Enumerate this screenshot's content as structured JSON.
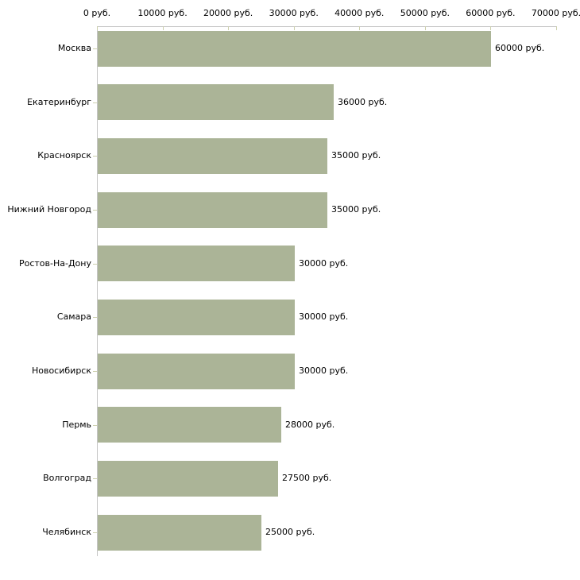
{
  "chart_data": {
    "type": "bar",
    "orientation": "horizontal",
    "title": "",
    "xlabel": "",
    "ylabel": "",
    "categories": [
      "Москва",
      "Екатеринбург",
      "Красноярск",
      "Нижний Новгород",
      "Ростов-На-Дону",
      "Самара",
      "Новосибирск",
      "Пермь",
      "Волгоград",
      "Челябинск"
    ],
    "values": [
      60000,
      36000,
      35000,
      35000,
      30000,
      30000,
      30000,
      28000,
      27500,
      25000
    ],
    "value_labels": [
      "60000 руб.",
      "36000 руб.",
      "35000 руб.",
      "35000 руб.",
      "30000 руб.",
      "30000 руб.",
      "30000 руб.",
      "28000 руб.",
      "27500 руб.",
      "25000 руб."
    ],
    "x_axis": {
      "position": "top",
      "tick_values": [
        0,
        10000,
        20000,
        30000,
        40000,
        50000,
        60000,
        70000
      ],
      "tick_labels": [
        "0 руб.",
        "10000 руб.",
        "20000 руб.",
        "30000 руб.",
        "40000 руб.",
        "50000 руб.",
        "60000 руб.",
        "70000 руб."
      ],
      "min": 0,
      "max": 70000
    },
    "grid": false,
    "legend": false,
    "colors": {
      "bar": "#abb497",
      "axis_line": "#c6c6c6",
      "tick": "#cdd0ae",
      "text": "#000000",
      "background": "#ffffff"
    }
  }
}
